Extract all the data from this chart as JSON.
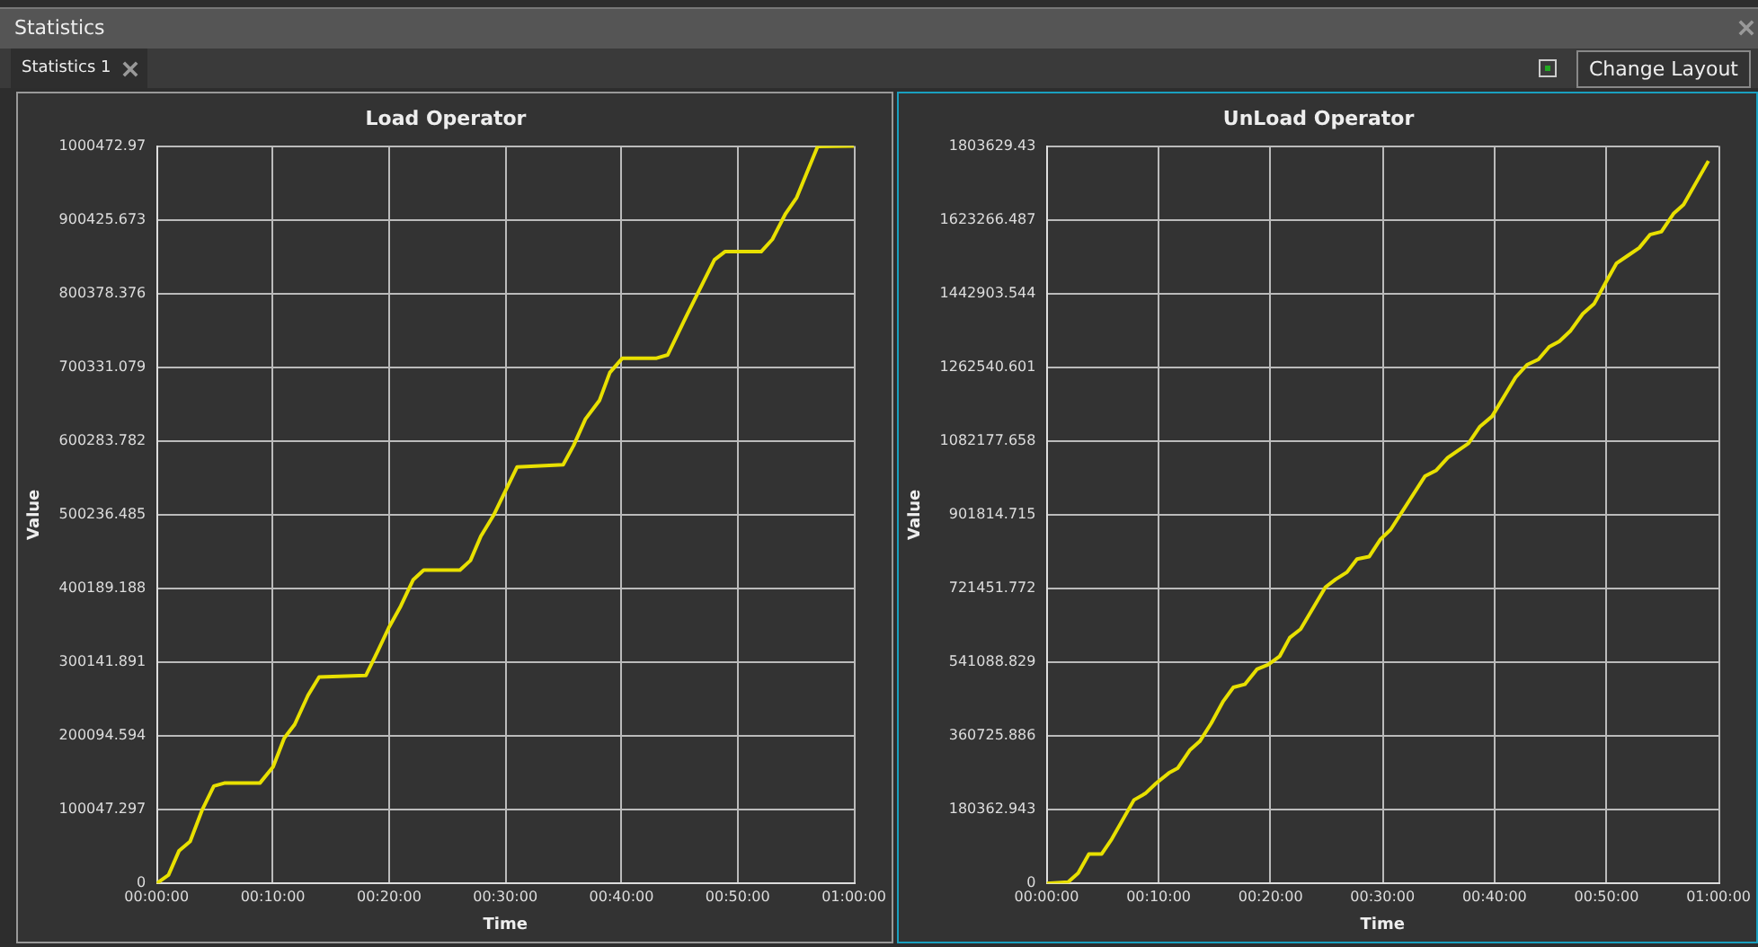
{
  "chart_data": [
    {
      "type": "line",
      "title": "Load Operator",
      "xlabel": "Time",
      "ylabel": "Value",
      "grid": true,
      "marker": "none",
      "line_style": "solid",
      "annotations": [
        "Statistics",
        "Statistics 1",
        "Change Layout"
      ],
      "xlim": [
        0,
        1
      ],
      "xticks": [
        {
          "value": 0,
          "label": "00:00:00"
        },
        {
          "value": 0.16667,
          "label": "00:10:00"
        },
        {
          "value": 0.33333,
          "label": "00:20:00"
        },
        {
          "value": 0.5,
          "label": "00:30:00"
        },
        {
          "value": 0.66667,
          "label": "00:40:00"
        },
        {
          "value": 0.83333,
          "label": "00:50:00"
        },
        {
          "value": 1,
          "label": "01:00:00"
        }
      ],
      "ylim": [
        0,
        1000472.97
      ],
      "yticks": [
        0,
        100047.297,
        200094.594,
        300141.891,
        400189.188,
        500236.485,
        600283.782,
        700331.079,
        800378.376,
        900425.673,
        1000472.97
      ],
      "series": [
        {
          "color": "#e8e000",
          "x": [
            0,
            0.017,
            0.032,
            0.048,
            0.065,
            0.082,
            0.097,
            0.148,
            0.167,
            0.183,
            0.198,
            0.217,
            0.233,
            0.3,
            0.317,
            0.333,
            0.35,
            0.368,
            0.383,
            0.435,
            0.45,
            0.465,
            0.483,
            0.517,
            0.583,
            0.598,
            0.615,
            0.635,
            0.65,
            0.668,
            0.717,
            0.733,
            0.76,
            0.8,
            0.815,
            0.867,
            0.883,
            0.902,
            0.918,
            0.948,
            1
          ],
          "values": [
            0,
            11400,
            44000,
            57000,
            99000,
            132000,
            136000,
            136000,
            158000,
            197000,
            215700,
            255000,
            280000,
            282000,
            315000,
            347000,
            376000,
            412000,
            425000,
            425000,
            438000,
            471000,
            499000,
            565000,
            568000,
            594000,
            630000,
            655000,
            693000,
            712500,
            712500,
            717000,
            770000,
            846000,
            857000,
            857000,
            873600,
            908600,
            930500,
            999700,
            1000472.97
          ]
        }
      ]
    },
    {
      "type": "line",
      "title": "UnLoad Operator",
      "xlabel": "Time",
      "ylabel": "Value",
      "grid": true,
      "marker": "none",
      "line_style": "solid",
      "xlim": [
        0,
        1
      ],
      "xticks": [
        {
          "value": 0,
          "label": "00:00:00"
        },
        {
          "value": 0.16667,
          "label": "00:10:00"
        },
        {
          "value": 0.33333,
          "label": "00:20:00"
        },
        {
          "value": 0.5,
          "label": "00:30:00"
        },
        {
          "value": 0.66667,
          "label": "00:40:00"
        },
        {
          "value": 0.83333,
          "label": "00:50:00"
        },
        {
          "value": 1,
          "label": "01:00:00"
        }
      ],
      "ylim": [
        0,
        1803629.43
      ],
      "yticks": [
        0,
        180362.943,
        360725.886,
        541088.829,
        721451.772,
        901814.715,
        1082177.658,
        1262540.601,
        1442903.544,
        1623266.487,
        1803629.43
      ],
      "series": [
        {
          "color": "#e8e000",
          "x": [
            0,
            0.032,
            0.047,
            0.063,
            0.082,
            0.097,
            0.13,
            0.147,
            0.163,
            0.182,
            0.195,
            0.213,
            0.228,
            0.245,
            0.263,
            0.278,
            0.295,
            0.313,
            0.33,
            0.347,
            0.362,
            0.378,
            0.415,
            0.43,
            0.447,
            0.462,
            0.48,
            0.497,
            0.512,
            0.563,
            0.58,
            0.597,
            0.628,
            0.645,
            0.663,
            0.698,
            0.715,
            0.732,
            0.748,
            0.763,
            0.78,
            0.798,
            0.815,
            0.833,
            0.848,
            0.865,
            0.882,
            0.898,
            0.915,
            0.933,
            0.948,
            0.985
          ],
          "values": [
            0,
            3000,
            25000,
            72000,
            72000,
            108500,
            204000,
            220000,
            245000,
            270000,
            281500,
            325500,
            347500,
            391500,
            445800,
            479500,
            486800,
            523500,
            535200,
            555800,
            601200,
            621700,
            724400,
            743400,
            761000,
            793300,
            799100,
            841700,
            865100,
            995700,
            1010300,
            1041100,
            1076300,
            1117400,
            1142300,
            1237600,
            1268400,
            1281600,
            1312400,
            1325600,
            1352000,
            1393000,
            1418000,
            1472300,
            1516200,
            1535300,
            1554300,
            1586600,
            1593900,
            1637900,
            1659900,
            1766900
          ]
        }
      ]
    }
  ]
}
